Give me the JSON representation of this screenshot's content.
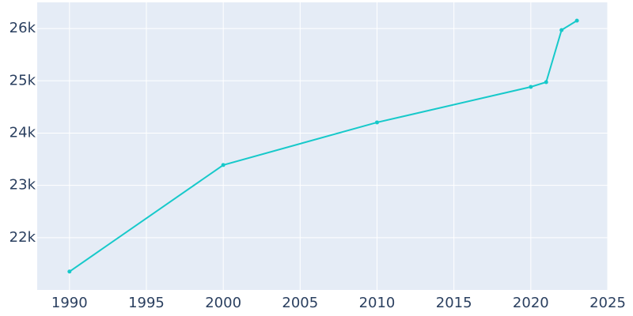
{
  "chart_data": {
    "type": "line",
    "x": [
      1990,
      2000,
      2010,
      2020,
      2021,
      2022,
      2023
    ],
    "series": [
      {
        "color": "#17c9ca",
        "values": [
          21351,
          23389,
          24204,
          24883,
          24974,
          25970,
          26151
        ]
      }
    ],
    "xlim": [
      1987.9,
      2025
    ],
    "xticks": [
      1990,
      1995,
      2000,
      2005,
      2010,
      2015,
      2020,
      2025
    ],
    "ylim": [
      21000,
      26500
    ],
    "yticks": [
      {
        "value": 22000,
        "label": "22k"
      },
      {
        "value": 23000,
        "label": "23k"
      },
      {
        "value": 24000,
        "label": "24k"
      },
      {
        "value": 25000,
        "label": "25k"
      },
      {
        "value": 26000,
        "label": "26k"
      }
    ],
    "grid": true
  }
}
